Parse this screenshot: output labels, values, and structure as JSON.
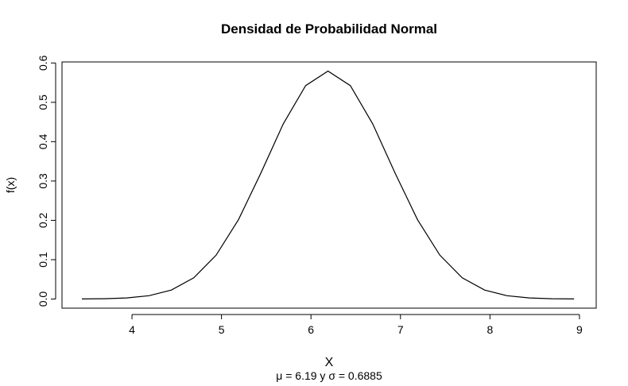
{
  "chart_data": {
    "type": "line",
    "title": "Densidad de Probabilidad Normal",
    "subtitle": "μ = 6.19 y σ = 0.6885",
    "x_label": "X",
    "y_label": "f(x)",
    "x": [
      3.44,
      3.69,
      3.94,
      4.19,
      4.44,
      4.69,
      4.94,
      5.19,
      5.44,
      5.69,
      5.94,
      6.19,
      6.44,
      6.69,
      6.94,
      7.19,
      7.44,
      7.69,
      7.94,
      8.19,
      8.44,
      8.69,
      8.94
    ],
    "values": [
      0.0002,
      0.0008,
      0.0028,
      0.0085,
      0.0229,
      0.054,
      0.1115,
      0.2018,
      0.3201,
      0.4451,
      0.5424,
      0.5794,
      0.5424,
      0.4451,
      0.3201,
      0.2018,
      0.1115,
      0.054,
      0.0229,
      0.0085,
      0.0028,
      0.0008,
      0.0002
    ],
    "color": "#000000",
    "xlim": [
      3.218,
      9.187
    ],
    "ylim": [
      -0.0232,
      0.6026
    ],
    "xticks": [
      4,
      5,
      6,
      7,
      8,
      9
    ],
    "yticks": [
      {
        "value": 0,
        "label": "0.0"
      },
      0.1,
      0.2,
      0.3,
      0.4,
      0.5,
      0.6
    ]
  }
}
